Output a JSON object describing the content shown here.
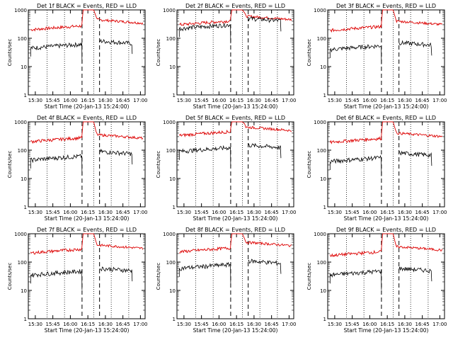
{
  "chart_data": {
    "type": "line",
    "y_scale": "log",
    "ylim": [
      1,
      1000
    ],
    "ylabel": "Counts/sec",
    "xlabel": "Start Time (20-Jan-13 15:24:00)",
    "x_ticks": [
      "15:30",
      "15:45",
      "16:00",
      "16:15",
      "16:30",
      "16:45",
      "17:00"
    ],
    "y_ticks": [
      "1",
      "10",
      "100",
      "1000"
    ],
    "colors": {
      "events": "#000000",
      "lld": "#dd0000"
    },
    "panels": [
      {
        "title": "Det 1f BLACK = Events, RED = LLD",
        "events_level": 45,
        "lld_level": 200,
        "events_after": 80,
        "lld_after": 450
      },
      {
        "title": "Det 2f BLACK = Events, RED = LLD",
        "events_level": 220,
        "lld_level": 300,
        "events_after": 500,
        "lld_after": 600
      },
      {
        "title": "Det 3f BLACK = Events, RED = LLD",
        "events_level": 40,
        "lld_level": 190,
        "events_after": 70,
        "lld_after": 400
      },
      {
        "title": "Det 4f BLACK = Events, RED = LLD",
        "events_level": 45,
        "lld_level": 200,
        "events_after": 90,
        "lld_after": 350
      },
      {
        "title": "Det 5f BLACK = Events, RED = LLD",
        "events_level": 90,
        "lld_level": 330,
        "events_after": 150,
        "lld_after": 650
      },
      {
        "title": "Det 6f BLACK = Events, RED = LLD",
        "events_level": 40,
        "lld_level": 190,
        "events_after": 80,
        "lld_after": 400
      },
      {
        "title": "Det 7f BLACK = Events, RED = LLD",
        "events_level": 35,
        "lld_level": 210,
        "events_after": 60,
        "lld_after": 400
      },
      {
        "title": "Det 8f BLACK = Events, RED = LLD",
        "events_level": 60,
        "lld_level": 230,
        "events_after": 110,
        "lld_after": 500
      },
      {
        "title": "Det 9f BLACK = Events, RED = LLD",
        "events_level": 35,
        "lld_level": 170,
        "events_after": 60,
        "lld_after": 350
      }
    ]
  }
}
